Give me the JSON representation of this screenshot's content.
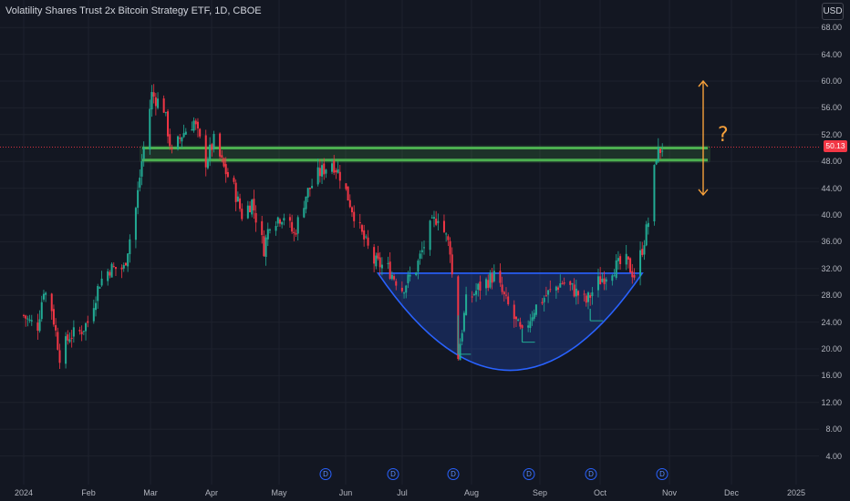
{
  "header": {
    "title": "Volatility Shares Trust 2x Bitcoin Strategy ETF, 1D, CBOE",
    "currency": "USD"
  },
  "price_axis": {
    "ticks": [
      "68.00",
      "64.00",
      "60.00",
      "56.00",
      "52.00",
      "48.00",
      "44.00",
      "40.00",
      "36.00",
      "32.00",
      "28.00",
      "24.00",
      "20.00",
      "16.00",
      "12.00",
      "8.00",
      "4.00"
    ],
    "last_price": "50.13"
  },
  "time_axis": {
    "ticks": [
      "2024",
      "Feb",
      "Mar",
      "Apr",
      "May",
      "Jun",
      "Jul",
      "Aug",
      "Sep",
      "Oct",
      "Nov",
      "Dec",
      "2025"
    ]
  },
  "annotations": {
    "question_mark": "?"
  },
  "events": {
    "marker_glyph": "D",
    "count": 6
  },
  "colors": {
    "background": "#131722",
    "up": "#22ab94",
    "down": "#f23645",
    "grid": "#1e222d",
    "resistance": "#4caf50",
    "cup": "#2962ff",
    "arrow": "#f7a13b"
  },
  "chart_data": {
    "type": "candlestick",
    "title": "Volatility Shares Trust 2x Bitcoin Strategy ETF, 1D, CBOE",
    "ylim": [
      0,
      70
    ],
    "x_range": [
      "2024-01-01",
      "2025-01-15"
    ],
    "last_price": 50.13,
    "resistance_band": [
      48.2,
      50.0
    ],
    "cup_pattern": {
      "rim": 31.3,
      "bottom": 16.8,
      "start": "2024-06-26",
      "end": "2024-11-05"
    },
    "series": [
      {
        "name": "price",
        "points": [
          [
            "2024-01-01",
            25
          ],
          [
            "2024-01-04",
            24
          ],
          [
            "2024-01-08",
            23.5
          ],
          [
            "2024-01-11",
            29
          ],
          [
            "2024-01-15",
            26
          ],
          [
            "2024-01-19",
            19
          ],
          [
            "2024-01-24",
            22
          ],
          [
            "2024-01-29",
            22.5
          ],
          [
            "2024-02-02",
            24
          ],
          [
            "2024-02-08",
            30
          ],
          [
            "2024-02-13",
            32
          ],
          [
            "2024-02-20",
            32
          ],
          [
            "2024-02-26",
            41
          ],
          [
            "2024-02-29",
            48
          ],
          [
            "2024-03-05",
            58
          ],
          [
            "2024-03-11",
            56
          ],
          [
            "2024-03-15",
            49
          ],
          [
            "2024-03-20",
            52
          ],
          [
            "2024-03-26",
            54
          ],
          [
            "2024-04-01",
            48
          ],
          [
            "2024-04-05",
            51
          ],
          [
            "2024-04-10",
            47
          ],
          [
            "2024-04-15",
            44
          ],
          [
            "2024-04-19",
            40
          ],
          [
            "2024-04-24",
            42
          ],
          [
            "2024-04-30",
            35
          ],
          [
            "2024-05-03",
            39
          ],
          [
            "2024-05-10",
            40
          ],
          [
            "2024-05-15",
            37
          ],
          [
            "2024-05-21",
            43
          ],
          [
            "2024-05-27",
            46
          ],
          [
            "2024-06-03",
            48
          ],
          [
            "2024-06-07",
            46
          ],
          [
            "2024-06-13",
            41
          ],
          [
            "2024-06-18",
            37
          ],
          [
            "2024-06-24",
            33
          ],
          [
            "2024-07-01",
            32
          ],
          [
            "2024-07-08",
            29
          ],
          [
            "2024-07-15",
            32
          ],
          [
            "2024-07-22",
            38
          ],
          [
            "2024-07-26",
            40
          ],
          [
            "2024-08-01",
            35
          ],
          [
            "2024-08-05",
            19
          ],
          [
            "2024-08-09",
            27
          ],
          [
            "2024-08-15",
            29
          ],
          [
            "2024-08-23",
            31
          ],
          [
            "2024-08-29",
            27
          ],
          [
            "2024-09-06",
            22
          ],
          [
            "2024-09-12",
            26
          ],
          [
            "2024-09-18",
            28
          ],
          [
            "2024-09-26",
            30
          ],
          [
            "2024-10-01",
            29
          ],
          [
            "2024-10-08",
            27
          ],
          [
            "2024-10-14",
            30
          ],
          [
            "2024-10-21",
            32
          ],
          [
            "2024-10-28",
            33
          ],
          [
            "2024-11-01",
            31
          ],
          [
            "2024-11-05",
            35
          ],
          [
            "2024-11-08",
            39
          ],
          [
            "2024-11-12",
            49
          ],
          [
            "2024-11-15",
            50.13
          ]
        ]
      }
    ]
  }
}
